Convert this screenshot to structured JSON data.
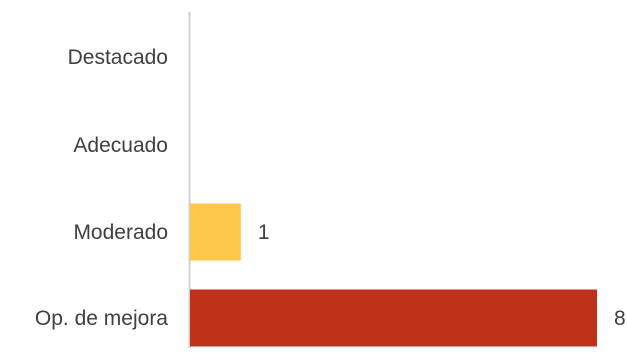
{
  "chart_data": {
    "type": "bar",
    "orientation": "horizontal",
    "categories": [
      "Destacado",
      "Adecuado",
      "Moderado",
      "Op. de mejora"
    ],
    "values": [
      0,
      0,
      1,
      8
    ],
    "data_labels": [
      "",
      "",
      "1",
      "8"
    ],
    "colors": [
      "#F9C74F",
      "#F9C74F",
      "#FDC84A",
      "#C0311A"
    ],
    "xlim": [
      0,
      8
    ],
    "title": "",
    "xlabel": "",
    "ylabel": "",
    "grid": false,
    "legend": "none"
  }
}
